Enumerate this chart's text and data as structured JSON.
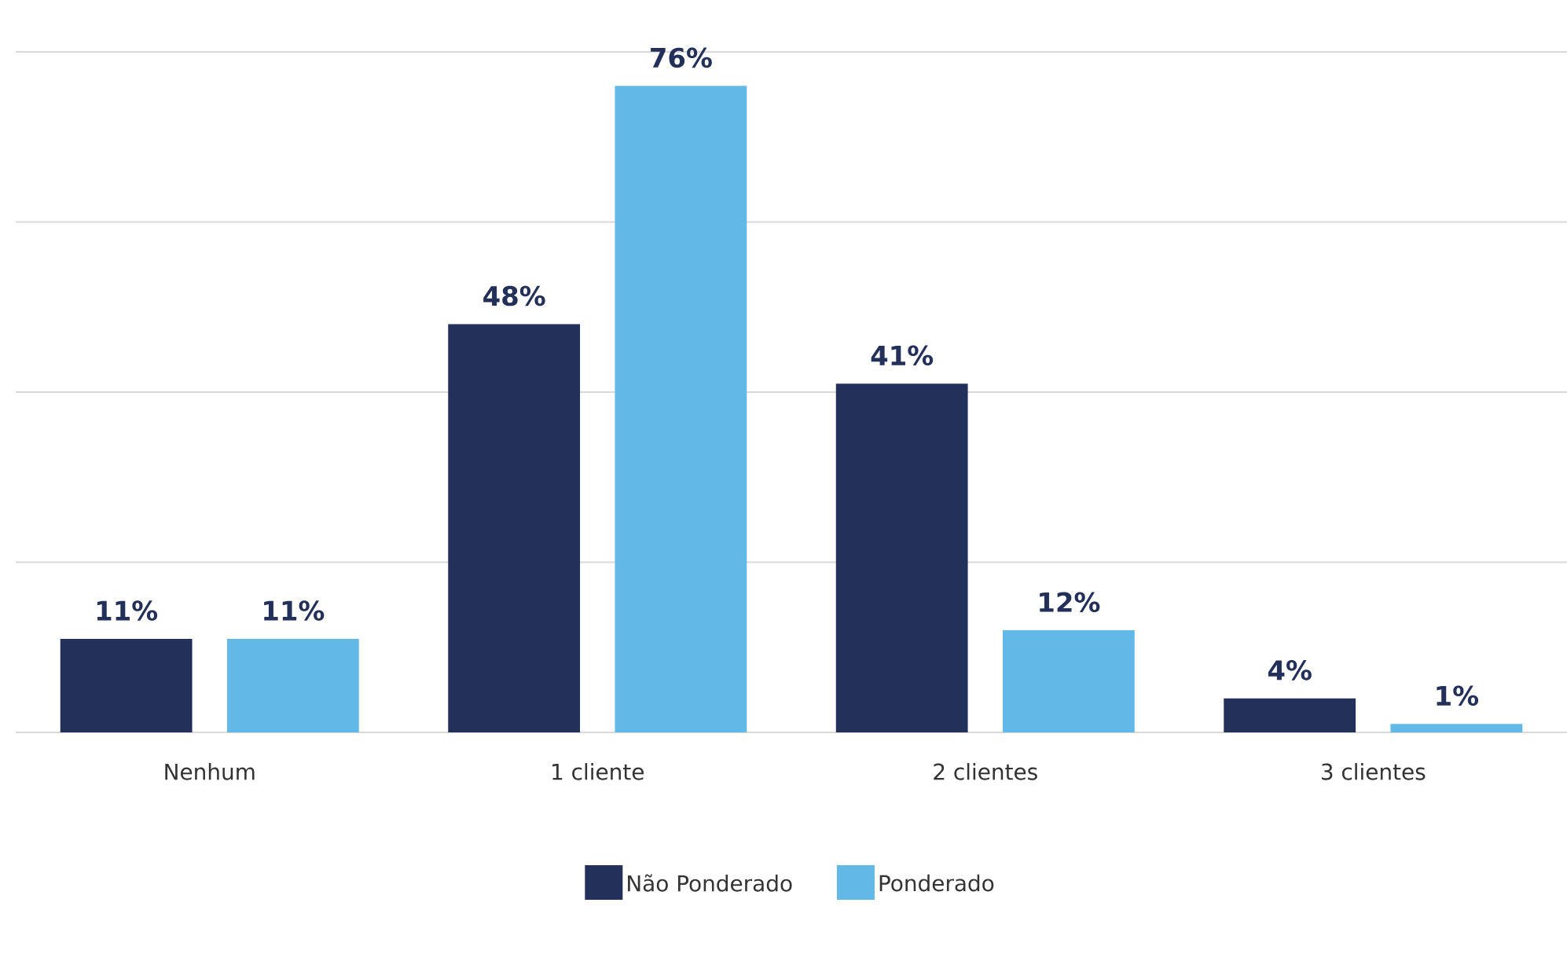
{
  "chart_data": {
    "type": "bar",
    "categories": [
      "Nenhum",
      "1 cliente",
      "2 clientes",
      "3 clientes"
    ],
    "series": [
      {
        "name": "Não Ponderado",
        "color": "#23305a",
        "values": [
          11,
          48,
          41,
          4
        ],
        "value_labels": [
          "11%",
          "48%",
          "41%",
          "4%"
        ]
      },
      {
        "name": "Ponderado",
        "color": "#62b9e8",
        "values": [
          11,
          76,
          12,
          1
        ],
        "value_labels": [
          "11%",
          "76%",
          "12%",
          "1%"
        ]
      }
    ],
    "ylim": [
      0,
      80
    ],
    "yticks": [
      {
        "value": 0,
        "label": null
      },
      {
        "value": 20,
        "label": null
      },
      {
        "value": 40,
        "label": null
      },
      {
        "value": 60,
        "label": null
      },
      {
        "value": 80,
        "label": null
      }
    ],
    "tick_labels": "x",
    "grid": "y",
    "legend": "bottom"
  }
}
